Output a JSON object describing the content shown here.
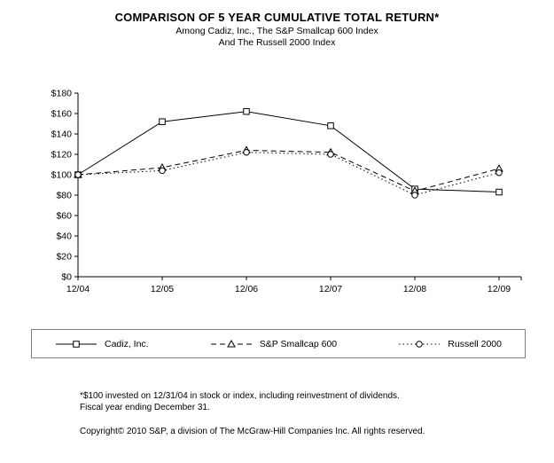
{
  "title": "COMPARISON OF 5 YEAR CUMULATIVE TOTAL RETURN*",
  "subtitle_line1": "Among Cadiz, Inc., The S&P Smallcap 600 Index",
  "subtitle_line2": "And The Russell 2000 Index",
  "colors": {
    "line": "#000000",
    "background": "#ffffff",
    "legend_border": "#808080"
  },
  "chart_data": {
    "type": "line",
    "title": "COMPARISON OF 5 YEAR CUMULATIVE TOTAL RETURN*",
    "xlabel": "",
    "ylabel": "",
    "x": [
      "12/04",
      "12/05",
      "12/06",
      "12/07",
      "12/08",
      "12/09"
    ],
    "series": [
      {
        "name": "Cadiz, Inc.",
        "marker": "square",
        "dash": "solid",
        "values": [
          100,
          152,
          162,
          148,
          86,
          83
        ]
      },
      {
        "name": "S&P Smallcap 600",
        "marker": "triangle",
        "dash": "dashed",
        "values": [
          100,
          107,
          124,
          122,
          84,
          106
        ]
      },
      {
        "name": "Russell 2000",
        "marker": "circle",
        "dash": "dotted",
        "values": [
          100,
          104,
          122,
          120,
          80,
          102
        ]
      }
    ],
    "ylim": [
      0,
      180
    ],
    "yticks": [
      0,
      20,
      40,
      60,
      80,
      100,
      120,
      140,
      160,
      180
    ],
    "ytick_labels": [
      "$0",
      "$20",
      "$40",
      "$60",
      "$80",
      "$100",
      "$120",
      "$140",
      "$160",
      "$180"
    ],
    "grid": false,
    "legend_position": "bottom"
  },
  "footnotes": {
    "line1": "*$100 invested on 12/31/04 in stock or index, including reinvestment of dividends.",
    "line2": "Fiscal year ending December 31.",
    "copyright": "Copyright© 2010 S&P, a division of The McGraw-Hill Companies Inc. All rights reserved."
  }
}
